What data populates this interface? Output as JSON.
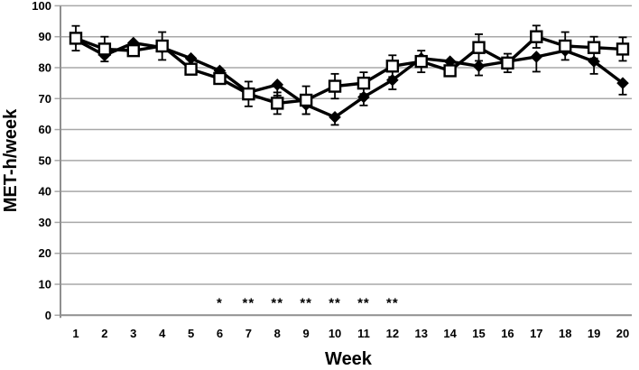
{
  "chart_data": {
    "type": "line",
    "title": "",
    "xlabel": "Week",
    "ylabel": "MET-h/week",
    "x_ticks": [
      1,
      2,
      3,
      4,
      5,
      6,
      7,
      8,
      9,
      10,
      11,
      12,
      13,
      14,
      15,
      16,
      17,
      18,
      19,
      20
    ],
    "y_ticks": [
      0,
      10,
      20,
      30,
      40,
      50,
      60,
      70,
      80,
      90,
      100
    ],
    "xlim": [
      1,
      20
    ],
    "ylim": [
      0,
      100
    ],
    "grid": "horizontal",
    "legend": "none",
    "series": [
      {
        "name": "filled-diamond-series",
        "marker": "diamond",
        "line_color": "#000000",
        "marker_fill": "#000000",
        "values": [
          89,
          84,
          88,
          86.5,
          83,
          79,
          72,
          74.5,
          68,
          64,
          70.5,
          76,
          83,
          82,
          80.5,
          82,
          83.5,
          85.5,
          82,
          75
        ],
        "error_lower": [
          0,
          0,
          0,
          0,
          0,
          0,
          0,
          3.5,
          3,
          2.5,
          2.7,
          3,
          0,
          0,
          3,
          0,
          4.8,
          0,
          4,
          3.7
        ]
      },
      {
        "name": "open-square-series",
        "marker": "square",
        "line_color": "#000000",
        "marker_fill": "#ffffff",
        "marker_stroke": "#000000",
        "values": [
          89.5,
          86,
          85.5,
          87,
          79.5,
          76.5,
          71.5,
          68.5,
          69.5,
          74,
          75,
          80.5,
          82,
          79,
          86.5,
          81.5,
          90,
          87,
          86.5,
          86
        ],
        "error": [
          4,
          4,
          0,
          4.5,
          0,
          0,
          4,
          3.5,
          4.5,
          4,
          3.5,
          3.5,
          3.5,
          0,
          4.3,
          3,
          3.6,
          4.5,
          3.5,
          3.8
        ]
      }
    ],
    "annotations": [
      {
        "x": 6,
        "y": 5.5,
        "text": "*"
      },
      {
        "x": 7,
        "y": 5.5,
        "text": "**"
      },
      {
        "x": 8,
        "y": 5.5,
        "text": "**"
      },
      {
        "x": 9,
        "y": 5.5,
        "text": "**"
      },
      {
        "x": 10,
        "y": 5.5,
        "text": "**"
      },
      {
        "x": 11,
        "y": 5.5,
        "text": "**"
      },
      {
        "x": 12,
        "y": 5.5,
        "text": "**"
      }
    ],
    "colors": {
      "grid": "#a8a8a8",
      "axis": "#8f8f8f",
      "line": "#000000",
      "text": "#000000"
    }
  }
}
